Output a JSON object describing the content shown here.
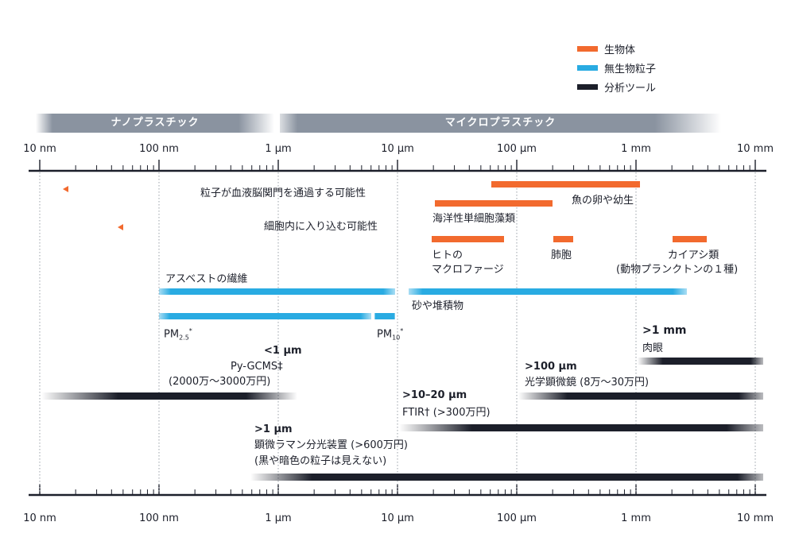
{
  "legend": [
    {
      "label": "生物体",
      "color": "#f26a2e"
    },
    {
      "label": "無生物粒子",
      "color": "#29abe2"
    },
    {
      "label": "分析ツール",
      "color": "#1c1f2a"
    }
  ],
  "bands": {
    "nano": "ナノプラスチック",
    "micro": "マイクロプラスチック"
  },
  "axis_ticks": [
    "10 nm",
    "100 nm",
    "1 µm",
    "10 µm",
    "100 µm",
    "1 mm",
    "10 mm"
  ],
  "labels": {
    "bbb": "粒子が血液脳関門を通過する可能性",
    "cell": "細胞内に入り込む可能性",
    "fish": "魚の卵や幼生",
    "algae": "海洋性単細胞藻類",
    "macrophage_1": "ヒトの",
    "macrophage_2": "マクロファージ",
    "lung": "肺胞",
    "copepod_1": "カイアシ類",
    "copepod_2": "(動物プランクトンの１種)",
    "asbestos": "アスベストの繊維",
    "sand": "砂や堆積物",
    "pm25_main": "PM",
    "pm25_sub": "2.5",
    "pm25_star": "*",
    "pm10_main": "PM",
    "pm10_sub": "10",
    "pm10_star": "*",
    "eye_size": ">1 mm",
    "eye": "肉眼",
    "optical_size": ">100 µm",
    "optical": "光学顕微鏡 (8万～30万円)",
    "pygcms_size": "<1 µm",
    "pygcms": "Py-GCMS‡",
    "pygcms_price": "(2000万～3000万円)",
    "ftir_size": ">10–20 µm",
    "ftir": "FTIR† (>300万円)",
    "raman_size": ">1 µm",
    "raman": "顕微ラマン分光装置 (>600万円)",
    "raman_note": "(黒や暗色の粒子は見えない)"
  }
}
